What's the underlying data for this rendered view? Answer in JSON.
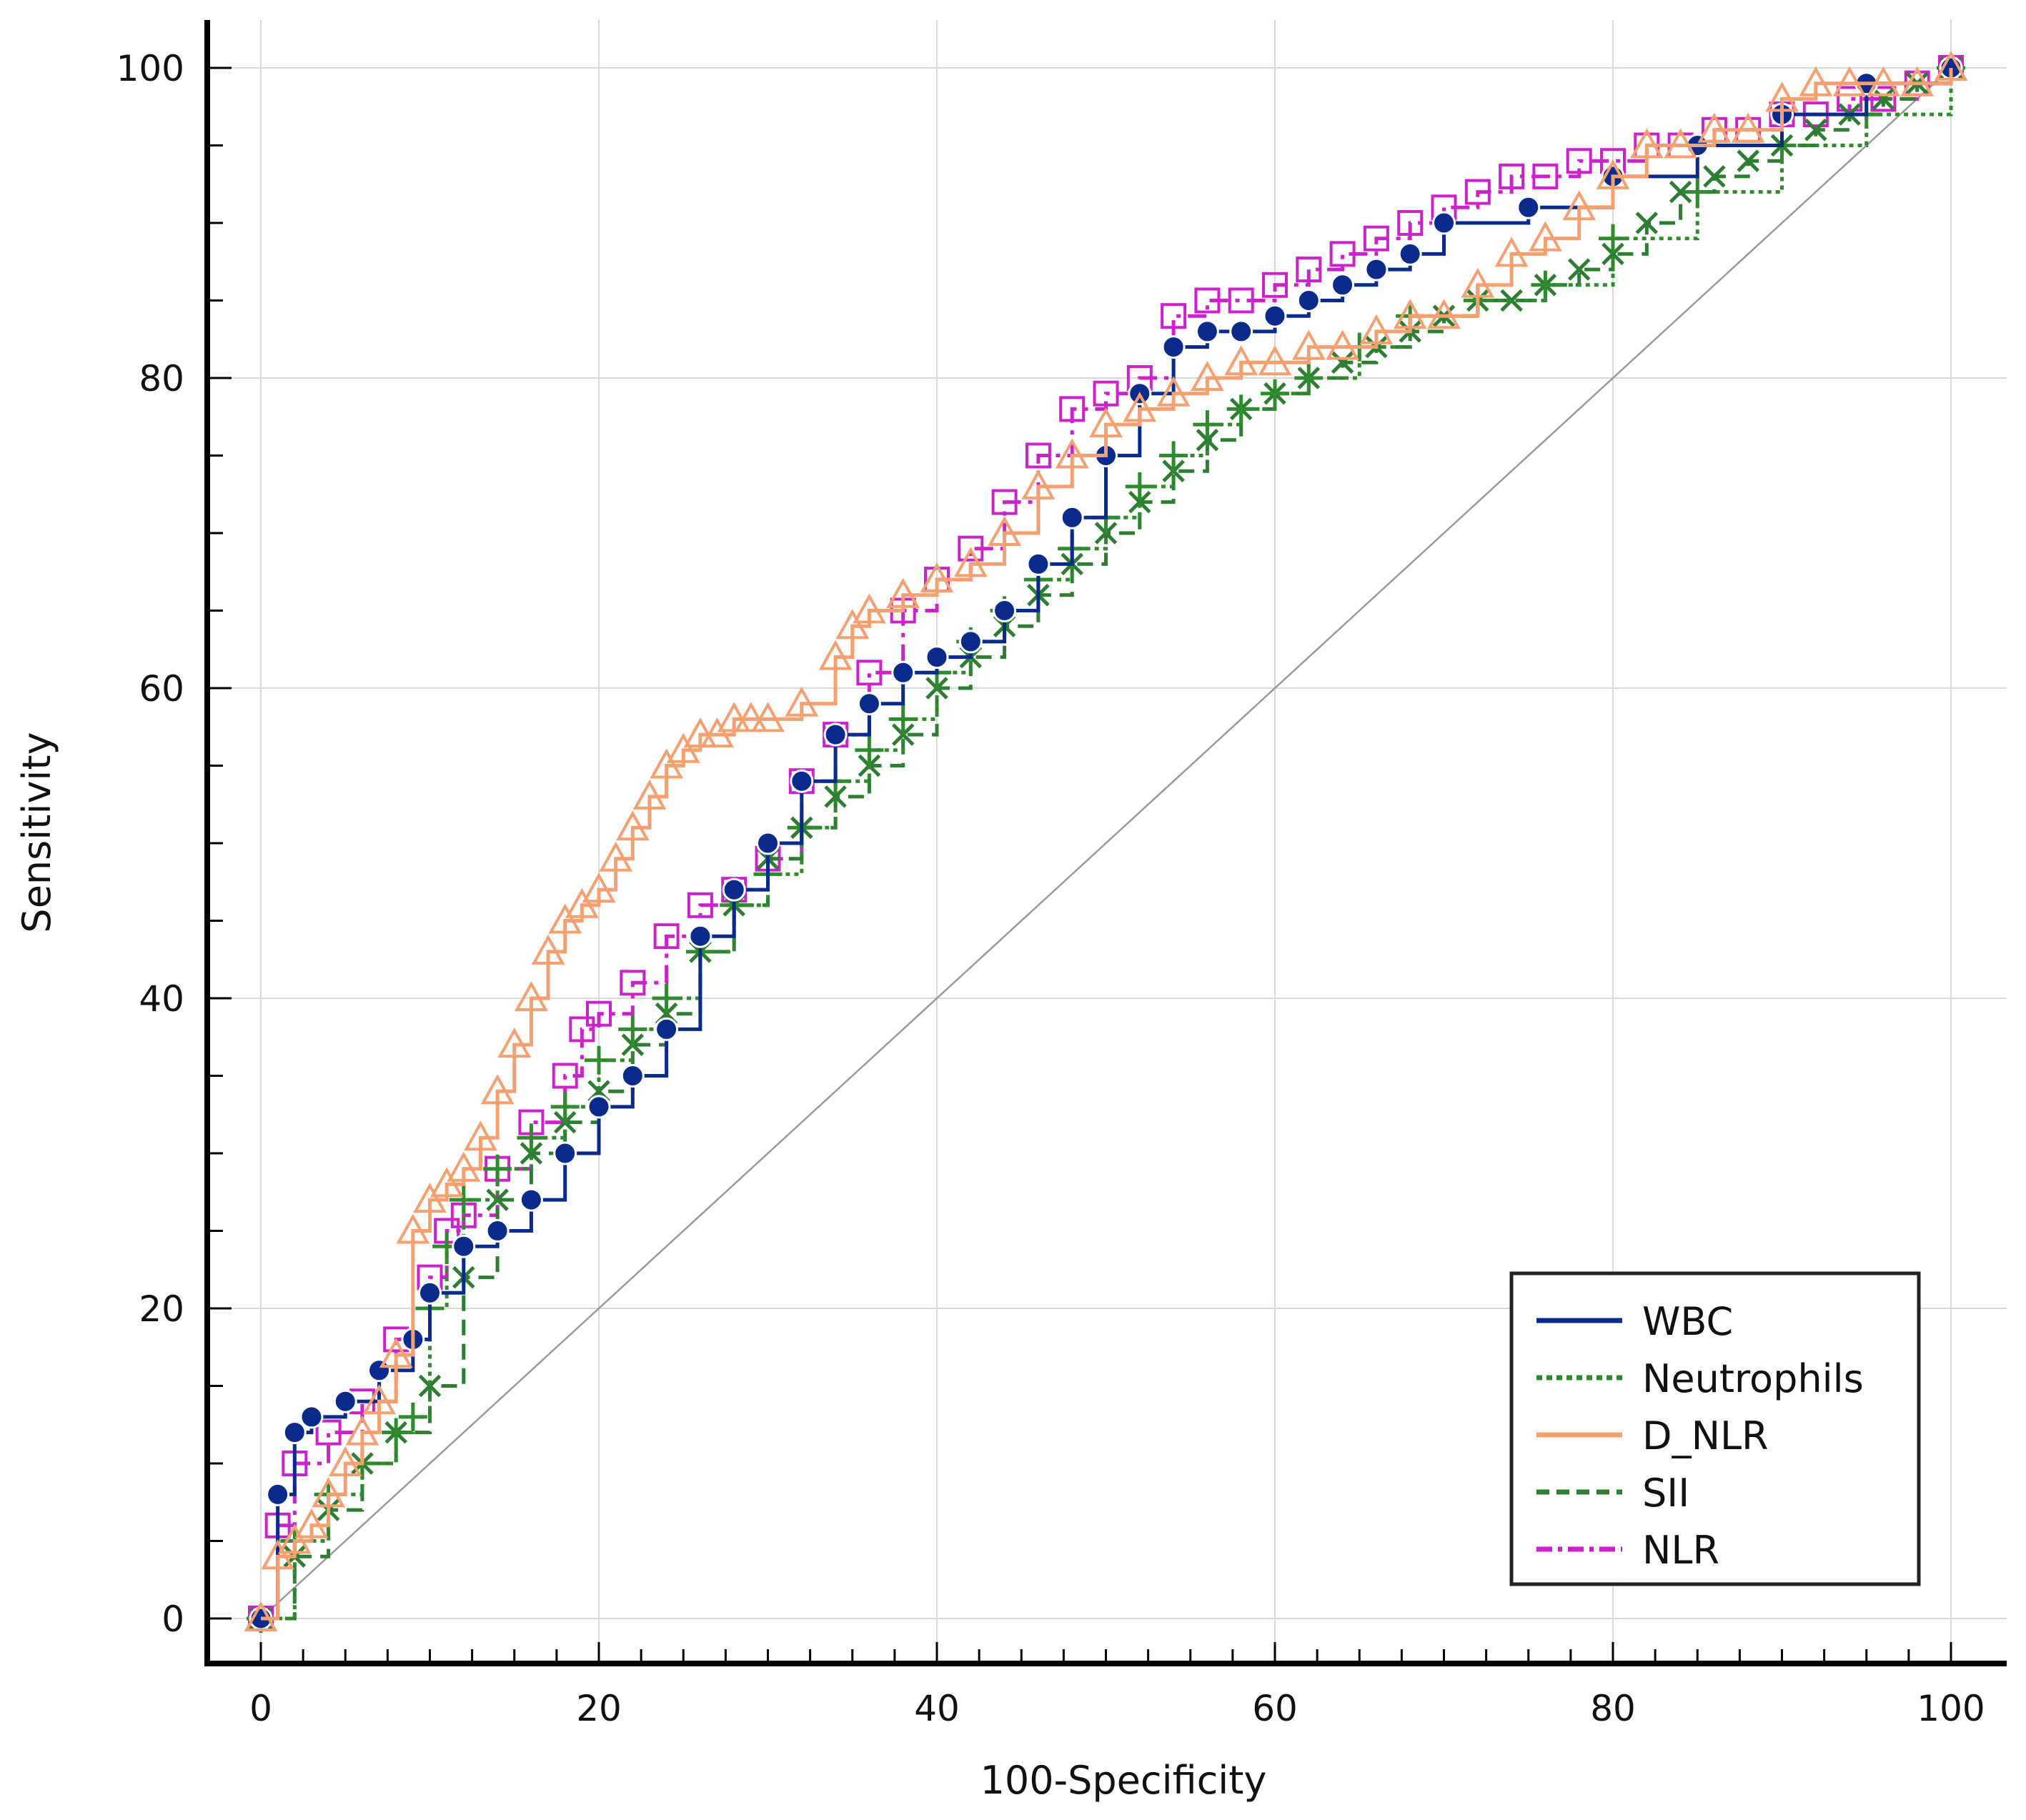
{
  "chart_data": {
    "type": "line",
    "subtype": "roc",
    "title": "",
    "xlabel": "100-Specificity",
    "ylabel": "Sensitivity",
    "xlim": [
      0,
      100
    ],
    "ylim": [
      0,
      100
    ],
    "xticks": [
      0,
      20,
      40,
      60,
      80,
      100
    ],
    "yticks": [
      0,
      20,
      40,
      60,
      80,
      100
    ],
    "grid": true,
    "legend_position": "bottom-right",
    "reference_line": {
      "name": "chance",
      "x": [
        0,
        100
      ],
      "y": [
        0,
        100
      ]
    },
    "series": [
      {
        "name": "WBC",
        "color": "#0a2a8c",
        "style": "solid",
        "marker": "circle",
        "x": [
          0,
          1,
          2,
          3,
          5,
          7,
          9,
          10,
          12,
          14,
          16,
          18,
          20,
          22,
          24,
          26,
          28,
          30,
          32,
          34,
          36,
          38,
          40,
          42,
          44,
          46,
          48,
          50,
          52,
          54,
          56,
          58,
          60,
          62,
          64,
          66,
          68,
          70,
          75,
          80,
          85,
          90,
          95,
          100
        ],
        "y": [
          0,
          8,
          12,
          13,
          14,
          16,
          18,
          21,
          24,
          25,
          27,
          30,
          33,
          35,
          38,
          44,
          47,
          50,
          54,
          57,
          59,
          61,
          62,
          63,
          65,
          68,
          71,
          75,
          79,
          82,
          83,
          83,
          84,
          85,
          86,
          87,
          88,
          90,
          91,
          93,
          95,
          97,
          99,
          100
        ]
      },
      {
        "name": "Neutrophils",
        "color": "#2e8b2e",
        "style": "dotted",
        "marker": "plus",
        "x": [
          0,
          2,
          4,
          6,
          8,
          9,
          10,
          11,
          12,
          14,
          16,
          18,
          20,
          22,
          24,
          26,
          28,
          30,
          32,
          34,
          36,
          38,
          40,
          42,
          44,
          46,
          48,
          50,
          52,
          54,
          56,
          58,
          60,
          62,
          65,
          68,
          72,
          76,
          80,
          85,
          90,
          95,
          100
        ],
        "y": [
          0,
          5,
          8,
          10,
          12,
          13,
          20,
          24,
          27,
          29,
          31,
          33,
          36,
          38,
          40,
          43,
          46,
          48,
          51,
          54,
          56,
          58,
          61,
          63,
          65,
          67,
          69,
          71,
          73,
          75,
          77,
          78,
          79,
          80,
          82,
          84,
          85,
          86,
          89,
          92,
          95,
          97,
          100
        ]
      },
      {
        "name": "D_NLR",
        "color": "#f4a070",
        "style": "solid",
        "marker": "triangle",
        "x": [
          0,
          1,
          2,
          3,
          4,
          5,
          6,
          7,
          8,
          9,
          10,
          11,
          12,
          13,
          14,
          15,
          16,
          17,
          18,
          19,
          20,
          21,
          22,
          23,
          24,
          25,
          26,
          27,
          28,
          29,
          30,
          32,
          34,
          35,
          36,
          38,
          40,
          42,
          44,
          46,
          48,
          50,
          52,
          54,
          56,
          58,
          60,
          62,
          64,
          66,
          68,
          70,
          72,
          74,
          76,
          78,
          80,
          82,
          84,
          86,
          88,
          90,
          92,
          94,
          96,
          98,
          100
        ],
        "y": [
          0,
          4,
          5,
          6,
          8,
          10,
          12,
          14,
          17,
          25,
          27,
          28,
          29,
          31,
          34,
          37,
          40,
          43,
          45,
          46,
          47,
          49,
          51,
          53,
          55,
          56,
          57,
          57,
          58,
          58,
          58,
          59,
          62,
          64,
          65,
          66,
          67,
          68,
          70,
          73,
          75,
          77,
          78,
          79,
          80,
          81,
          81,
          82,
          82,
          83,
          84,
          84,
          86,
          88,
          89,
          91,
          93,
          95,
          95,
          96,
          96,
          98,
          99,
          99,
          99,
          99,
          100
        ]
      },
      {
        "name": "SII",
        "color": "#2e7d32",
        "style": "dashed",
        "marker": "x",
        "x": [
          0,
          2,
          4,
          6,
          8,
          10,
          12,
          14,
          16,
          18,
          20,
          22,
          24,
          26,
          28,
          30,
          32,
          34,
          36,
          38,
          40,
          42,
          44,
          46,
          48,
          50,
          52,
          54,
          56,
          58,
          60,
          62,
          64,
          66,
          68,
          70,
          72,
          74,
          76,
          78,
          80,
          82,
          84,
          86,
          88,
          90,
          92,
          94,
          96,
          98,
          100
        ],
        "y": [
          0,
          4,
          7,
          10,
          12,
          15,
          22,
          27,
          30,
          32,
          34,
          37,
          39,
          43,
          46,
          49,
          51,
          53,
          55,
          57,
          60,
          62,
          64,
          66,
          68,
          70,
          72,
          74,
          76,
          78,
          79,
          80,
          81,
          82,
          83,
          84,
          85,
          85,
          86,
          87,
          88,
          90,
          92,
          93,
          94,
          95,
          96,
          97,
          98,
          99,
          100
        ]
      },
      {
        "name": "NLR",
        "color": "#cc22cc",
        "style": "dashdot",
        "marker": "square",
        "x": [
          0,
          1,
          2,
          4,
          6,
          8,
          10,
          11,
          12,
          14,
          16,
          18,
          19,
          20,
          22,
          24,
          26,
          28,
          30,
          32,
          34,
          36,
          38,
          40,
          42,
          44,
          46,
          48,
          50,
          52,
          54,
          56,
          58,
          60,
          62,
          64,
          66,
          68,
          70,
          72,
          74,
          76,
          78,
          80,
          82,
          84,
          86,
          88,
          90,
          92,
          94,
          96,
          98,
          100
        ],
        "y": [
          0,
          6,
          10,
          12,
          14,
          18,
          22,
          25,
          26,
          29,
          32,
          35,
          38,
          39,
          41,
          44,
          46,
          47,
          49,
          54,
          57,
          61,
          65,
          67,
          69,
          72,
          75,
          78,
          79,
          80,
          84,
          85,
          85,
          86,
          87,
          88,
          89,
          90,
          91,
          92,
          93,
          93,
          94,
          94,
          95,
          95,
          96,
          96,
          97,
          97,
          98,
          98,
          99,
          100
        ]
      }
    ]
  }
}
